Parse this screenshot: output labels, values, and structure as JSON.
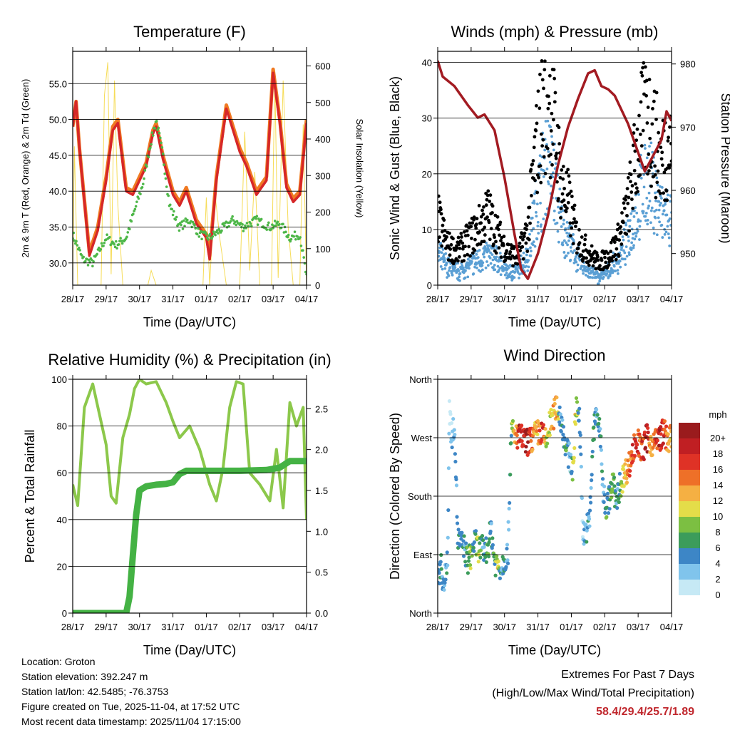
{
  "chart_data": [
    {
      "id": "temperature",
      "type": "line",
      "title": "Temperature (F)",
      "xlabel": "Time (Day/UTC)",
      "ylabel": "2m & 9m T (Red, Orange) & 2m Td (Green)",
      "y2label": "Solar Insolation (Yellow)",
      "x_ticks": [
        "28/17",
        "29/17",
        "30/17",
        "31/17",
        "01/17",
        "02/17",
        "03/17",
        "04/17"
      ],
      "ylim": [
        26.9,
        59.5
      ],
      "y_ticks": [
        "30.0",
        "35.0",
        "40.0",
        "45.0",
        "50.0",
        "55.0"
      ],
      "y2lim": [
        0,
        640
      ],
      "y2_ticks": [
        "0",
        "100",
        "200",
        "300",
        "400",
        "500",
        "600"
      ],
      "series": [
        {
          "name": "9m T",
          "color": "#f07a22",
          "x": [
            0,
            0.1,
            0.2,
            0.5,
            0.75,
            1.0,
            1.2,
            1.35,
            1.6,
            1.8,
            2.0,
            2.2,
            2.4,
            2.5,
            2.7,
            3.0,
            3.2,
            3.4,
            3.7,
            4.0,
            4.1,
            4.3,
            4.6,
            5.0,
            5.2,
            5.5,
            5.8,
            6.0,
            6.2,
            6.4,
            6.6,
            6.8,
            7.0
          ],
          "values": [
            49,
            52.5,
            46,
            31.5,
            35,
            42,
            49,
            50,
            40.5,
            40,
            42,
            44,
            48.5,
            49.5,
            45,
            40,
            38.5,
            40.5,
            36,
            34,
            31,
            42,
            52,
            46,
            44,
            40,
            42,
            57,
            50,
            41,
            39,
            40,
            50
          ]
        },
        {
          "name": "2m T",
          "color": "#d62728",
          "x": [
            0,
            0.1,
            0.2,
            0.5,
            0.75,
            1.0,
            1.2,
            1.35,
            1.6,
            1.8,
            2.0,
            2.2,
            2.4,
            2.5,
            2.7,
            3.0,
            3.2,
            3.4,
            3.7,
            4.0,
            4.1,
            4.3,
            4.6,
            5.0,
            5.2,
            5.5,
            5.8,
            6.0,
            6.2,
            6.4,
            6.6,
            6.8,
            7.0
          ],
          "values": [
            49,
            52.5,
            46,
            31,
            34.5,
            41.5,
            48.5,
            49.5,
            40,
            39.5,
            41.5,
            43.5,
            48,
            49,
            44.5,
            39.5,
            38,
            40,
            35.5,
            33.5,
            30.5,
            41.5,
            51.5,
            45.5,
            43.5,
            39.5,
            41.5,
            56.5,
            49.5,
            40.5,
            38.5,
            39.5,
            49.5
          ]
        },
        {
          "name": "2m Td",
          "color": "#4db748",
          "x": [
            0,
            0.3,
            0.6,
            1.0,
            1.3,
            1.6,
            1.9,
            2.1,
            2.3,
            2.5,
            2.7,
            2.9,
            3.2,
            3.5,
            3.8,
            4.1,
            4.4,
            4.8,
            5.1,
            5.5,
            5.9,
            6.2,
            6.5,
            6.8,
            7.0
          ],
          "values": [
            34,
            30.5,
            30,
            33.5,
            32.5,
            33.5,
            38,
            41,
            46,
            50,
            45,
            38,
            35,
            36,
            34,
            33.5,
            34.5,
            36,
            35,
            36,
            35,
            35.5,
            33.5,
            34,
            28
          ]
        },
        {
          "name": "Solar Insolation",
          "color": "#f6dc58",
          "axis": "y2",
          "x": [
            0,
            0.05,
            0.15,
            0.3,
            0.5,
            0.7,
            0.85,
            0.95,
            1.05,
            1.15,
            1.25,
            1.35,
            1.5,
            1.65,
            1.8,
            1.95,
            2.05,
            2.15,
            2.25,
            2.35,
            2.5,
            2.7,
            2.85,
            3.0,
            3.1,
            3.2,
            3.3,
            3.5,
            3.8,
            3.9,
            4.0,
            4.1,
            4.25,
            4.4,
            4.6,
            4.85,
            5.0,
            5.15,
            5.3,
            5.45,
            5.6,
            5.8,
            5.95,
            6.05,
            6.15,
            6.3,
            6.45,
            6.6,
            6.8,
            6.9,
            7.0
          ],
          "values": [
            0,
            380,
            0,
            0,
            0,
            0,
            0,
            520,
            610,
            30,
            560,
            220,
            0,
            0,
            0,
            0,
            0,
            0,
            0,
            40,
            0,
            0,
            0,
            0,
            0,
            0,
            0,
            0,
            0,
            0,
            240,
            0,
            260,
            130,
            0,
            0,
            0,
            420,
            40,
            310,
            0,
            0,
            0,
            580,
            20,
            560,
            160,
            0,
            0,
            440,
            0
          ]
        }
      ]
    },
    {
      "id": "winds",
      "type": "scatter",
      "title": "Winds (mph) & Pressure (mb)",
      "xlabel": "Time (Day/UTC)",
      "ylabel": "Sonic Wind & Gust (Blue, Black)",
      "y2label": "Station Pressure (Maroon)",
      "x_ticks": [
        "28/17",
        "29/17",
        "30/17",
        "31/17",
        "01/17",
        "02/17",
        "03/17",
        "04/17"
      ],
      "ylim": [
        0,
        42
      ],
      "y_ticks": [
        "0",
        "10",
        "20",
        "30",
        "40"
      ],
      "y2lim": [
        945,
        982
      ],
      "y2_ticks": [
        "950",
        "960",
        "970",
        "980"
      ],
      "series": [
        {
          "name": "Gust",
          "color": "#000000",
          "x": [
            0,
            0.3,
            0.6,
            0.9,
            1.2,
            1.5,
            1.8,
            2.1,
            2.4,
            2.7,
            2.9,
            3.1,
            3.3,
            3.5,
            3.7,
            3.9,
            4.2,
            4.5,
            4.8,
            5.1,
            5.4,
            5.7,
            5.9,
            6.1,
            6.3,
            6.5,
            6.7,
            6.9,
            7.0
          ],
          "values": [
            12,
            7,
            6,
            8,
            10,
            13,
            9,
            6,
            5,
            10,
            22,
            30,
            34,
            28,
            18,
            15,
            8,
            6,
            4,
            5,
            8,
            14,
            22,
            28,
            30,
            26,
            22,
            26,
            24
          ]
        },
        {
          "name": "Sonic Wind",
          "color": "#5a9fd4",
          "x": [
            0,
            0.3,
            0.6,
            0.9,
            1.2,
            1.5,
            1.8,
            2.1,
            2.4,
            2.7,
            2.9,
            3.1,
            3.3,
            3.5,
            3.7,
            3.9,
            4.2,
            4.5,
            4.8,
            5.1,
            5.4,
            5.7,
            5.9,
            6.1,
            6.3,
            6.5,
            6.7,
            6.9,
            7.0
          ],
          "values": [
            5,
            3,
            2,
            3,
            4,
            5,
            4,
            2,
            2,
            5,
            12,
            18,
            22,
            18,
            10,
            8,
            4,
            2,
            1,
            2,
            4,
            8,
            12,
            16,
            18,
            16,
            12,
            12,
            11
          ]
        },
        {
          "name": "Station Pressure",
          "color": "#a31b22",
          "axis": "y2",
          "x": [
            0,
            0.15,
            0.5,
            0.9,
            1.2,
            1.4,
            1.7,
            2.0,
            2.3,
            2.5,
            2.7,
            3.0,
            3.3,
            3.6,
            3.9,
            4.2,
            4.5,
            4.7,
            4.9,
            5.1,
            5.3,
            5.7,
            6.0,
            6.2,
            6.4,
            6.55,
            6.7,
            6.85,
            7.0
          ],
          "values": [
            980.5,
            978,
            976.5,
            973.5,
            971.5,
            972,
            969.5,
            962,
            953,
            947.5,
            946,
            950,
            956,
            964,
            970,
            974.5,
            978.5,
            979,
            976.5,
            976,
            975,
            970.5,
            966,
            963,
            965,
            966.5,
            968,
            972.5,
            971
          ]
        }
      ]
    },
    {
      "id": "humidity",
      "type": "line",
      "title": "Relative Humidity (%) & Precipitation (in)",
      "xlabel": "Time (Day/UTC)",
      "ylabel": "Percent & Total Rainfall",
      "x_ticks": [
        "28/17",
        "29/17",
        "30/17",
        "31/17",
        "01/17",
        "02/17",
        "03/17",
        "04/17"
      ],
      "ylim": [
        0,
        100
      ],
      "y_ticks": [
        "0",
        "20",
        "40",
        "60",
        "80",
        "100"
      ],
      "y2lim": [
        0,
        2.86
      ],
      "y2_ticks": [
        "0.0",
        "0.5",
        "1.0",
        "1.5",
        "2.0",
        "2.5"
      ],
      "series": [
        {
          "name": "Relative Humidity",
          "color": "#8cc84b",
          "x": [
            0,
            0.15,
            0.35,
            0.6,
            0.8,
            1.0,
            1.15,
            1.3,
            1.5,
            1.7,
            1.85,
            2.0,
            2.2,
            2.5,
            2.8,
            3.0,
            3.2,
            3.5,
            3.8,
            4.1,
            4.3,
            4.5,
            4.7,
            4.9,
            5.1,
            5.3,
            5.6,
            5.9,
            6.1,
            6.3,
            6.5,
            6.7,
            6.9,
            7.0
          ],
          "values": [
            55,
            46,
            88,
            98,
            85,
            72,
            50,
            47,
            75,
            85,
            96,
            100,
            98,
            99,
            90,
            82,
            75,
            80,
            70,
            55,
            48,
            62,
            88,
            99,
            98,
            60,
            55,
            48,
            70,
            45,
            90,
            80,
            88,
            40
          ]
        },
        {
          "name": "Total Rainfall",
          "color": "#44b244",
          "axis": "y2",
          "x": [
            0,
            1.6,
            1.7,
            1.8,
            1.9,
            2.0,
            2.2,
            2.5,
            2.8,
            3.0,
            3.2,
            3.4,
            4.0,
            5.0,
            5.8,
            6.2,
            6.5,
            7.0
          ],
          "values": [
            0,
            0,
            0.2,
            0.7,
            1.2,
            1.5,
            1.55,
            1.57,
            1.58,
            1.6,
            1.7,
            1.74,
            1.74,
            1.74,
            1.75,
            1.78,
            1.86,
            1.86
          ]
        }
      ]
    },
    {
      "id": "wind-direction",
      "type": "scatter",
      "title": "Wind Direction",
      "xlabel": "Time (Day/UTC)",
      "ylabel": "Direction (Colored By Speed)",
      "x_ticks": [
        "28/17",
        "29/17",
        "30/17",
        "31/17",
        "01/17",
        "02/17",
        "03/17",
        "04/17"
      ],
      "ylim": [
        0,
        360
      ],
      "y_ticks": [
        "North",
        "East",
        "South",
        "West",
        "North"
      ],
      "y_tick_values": [
        0,
        90,
        180,
        270,
        360
      ],
      "legend_title": "mph",
      "legend_labels": [
        "0",
        "2",
        "4",
        "6",
        "8",
        "10",
        "12",
        "14",
        "16",
        "18",
        "20+"
      ],
      "legend_colors": [
        "#c6e9f5",
        "#80c4ec",
        "#3d86c6",
        "#3c9c5b",
        "#7cbf42",
        "#e4dd49",
        "#f5b043",
        "#ee7028",
        "#df3226",
        "#c01f23",
        "#9a1b1d"
      ],
      "series": [
        {
          "name": "Direction",
          "x": [
            0,
            0.1,
            0.2,
            0.3,
            0.35,
            0.4,
            0.45,
            0.5,
            0.6,
            0.8,
            0.9,
            1.0,
            1.1,
            1.2,
            1.3,
            1.4,
            1.5,
            1.6,
            1.7,
            1.8,
            1.9,
            2.0,
            2.1,
            2.2,
            2.3,
            2.35,
            2.45,
            2.55,
            2.65,
            2.75,
            2.85,
            2.95,
            3.05,
            3.15,
            3.25,
            3.35,
            3.45,
            3.55,
            3.65,
            3.75,
            3.85,
            3.95,
            4.05,
            4.15,
            4.25,
            4.35,
            4.45,
            4.55,
            4.65,
            4.75,
            4.85,
            4.95,
            5.05,
            5.15,
            5.25,
            5.35,
            5.45,
            5.55,
            5.65,
            5.75,
            5.85,
            5.95,
            6.05,
            6.15,
            6.25,
            6.35,
            6.45,
            6.55,
            6.65,
            6.75,
            6.85,
            6.95
          ],
          "values": [
            60,
            70,
            40,
            95,
            320,
            280,
            270,
            300,
            115,
            100,
            80,
            90,
            110,
            100,
            100,
            95,
            100,
            130,
            80,
            75,
            70,
            85,
            90,
            290,
            265,
            275,
            270,
            268,
            262,
            265,
            270,
            275,
            280,
            272,
            262,
            290,
            300,
            320,
            305,
            285,
            250,
            240,
            220,
            320,
            300,
            120,
            130,
            140,
            270,
            310,
            285,
            190,
            160,
            180,
            200,
            170,
            195,
            210,
            220,
            230,
            250,
            270,
            255,
            250,
            270,
            265,
            260,
            265,
            270,
            280,
            270,
            268
          ],
          "speeds": [
            3,
            6,
            2,
            4,
            1,
            1,
            3,
            2,
            5,
            3,
            6,
            8,
            4,
            9,
            6,
            3,
            8,
            4,
            6,
            10,
            3,
            5,
            2,
            6,
            12,
            14,
            18,
            16,
            20,
            16,
            14,
            12,
            14,
            18,
            8,
            10,
            12,
            14,
            4,
            3,
            6,
            2,
            8,
            10,
            3,
            2,
            4,
            3,
            6,
            3,
            4,
            4,
            6,
            5,
            8,
            4,
            6,
            10,
            12,
            14,
            16,
            18,
            14,
            16,
            20,
            12,
            14,
            16,
            18,
            16,
            14,
            12
          ]
        }
      ]
    }
  ],
  "info": {
    "location": "Location: Groton",
    "elevation": "Station elevation: 392.247 m",
    "latlon": "Station lat/lon: 42.5485; -76.3753",
    "created": "Figure created on Tue, 2025-11-04, at 17:52 UTC",
    "recent": "Most recent data timestamp: 2025/11/04 17:15:00"
  },
  "extremes": {
    "heading": "Extremes For Past 7 Days",
    "subheading": "(High/Low/Max Wind/Total Precipitation)",
    "values": "58.4/29.4/25.7/1.89"
  }
}
